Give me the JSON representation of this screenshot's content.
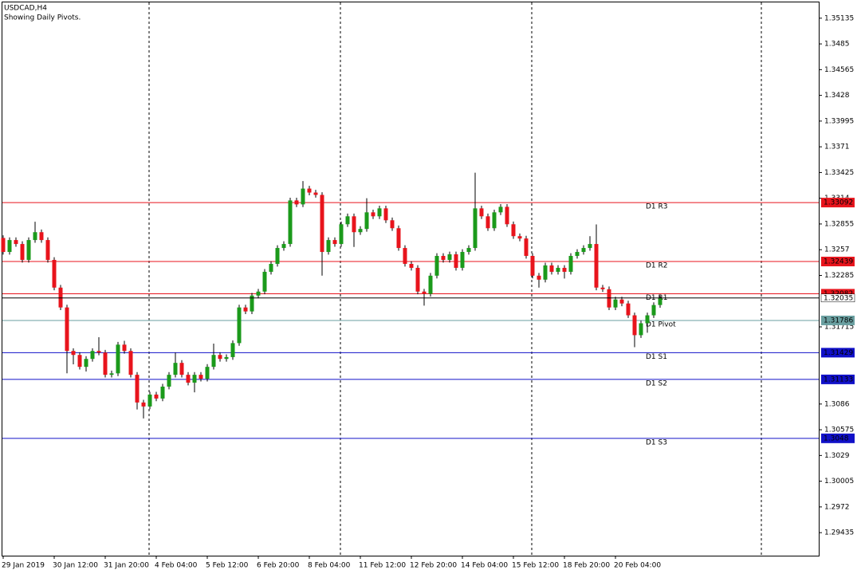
{
  "chart_data": {
    "type": "candlestick",
    "title": "USDCAD,H4",
    "subtitle": "Showing Daily Pivots.",
    "categories": [
      "29 Jan 2019",
      null,
      null,
      null,
      null,
      null,
      null,
      null,
      "30 Jan 12:00",
      null,
      null,
      null,
      null,
      null,
      null,
      null,
      "31 Jan 20:00",
      null,
      null,
      null,
      null,
      null,
      null,
      null,
      "4 Feb 04:00",
      null,
      null,
      null,
      null,
      null,
      null,
      null,
      "5 Feb 12:00",
      null,
      null,
      null,
      null,
      null,
      null,
      null,
      "6 Feb 20:00",
      null,
      null,
      null,
      null,
      null,
      null,
      null,
      "8 Feb 04:00",
      null,
      null,
      null,
      null,
      null,
      null,
      null,
      "11 Feb 12:00",
      null,
      null,
      null,
      null,
      null,
      null,
      null,
      "12 Feb 20:00",
      null,
      null,
      null,
      null,
      null,
      null,
      null,
      "14 Feb 04:00",
      null,
      null,
      null,
      null,
      null,
      null,
      null,
      "15 Feb 12:00",
      null,
      null,
      null,
      null,
      null,
      null,
      null,
      "18 Feb 20:00",
      null,
      null,
      null,
      null,
      null,
      null,
      null,
      "20 Feb 04:00",
      null,
      null,
      null,
      null,
      null,
      null,
      null
    ],
    "open": [
      1.327,
      1.32545,
      1.32677,
      1.32633,
      1.32457,
      1.32677,
      1.32764,
      1.32677,
      1.32457,
      1.3215,
      1.3193,
      1.31448,
      1.31404,
      1.31272,
      1.3136,
      1.31448,
      1.3143,
      1.31184,
      1.312,
      1.31518,
      1.31448,
      1.31184,
      1.30877,
      1.30833,
      1.30965,
      1.30921,
      1.31053,
      1.31184,
      1.31316,
      1.31184,
      1.31097,
      1.31184,
      1.3114,
      1.31272,
      1.31404,
      1.3136,
      1.3138,
      1.31535,
      1.3193,
      1.31886,
      1.32062,
      1.32106,
      1.32325,
      1.32413,
      1.32589,
      1.32633,
      1.33116,
      1.33072,
      1.33247,
      1.33203,
      1.33177,
      1.32545,
      1.32677,
      1.32633,
      1.32852,
      1.3294,
      1.32764,
      1.328,
      1.32984,
      1.3294,
      1.33028,
      1.32896,
      1.32808,
      1.32589,
      1.32413,
      1.32369,
      1.32106,
      1.3208,
      1.32282,
      1.32501,
      1.32457,
      1.32519,
      1.32369,
      1.32545,
      1.32589,
      1.33028,
      1.3294,
      1.32808,
      1.32984,
      1.33045,
      1.32852,
      1.3272,
      1.32694,
      1.32501,
      1.32282,
      1.32238,
      1.32396,
      1.32325,
      1.32369,
      1.32325,
      1.32501,
      1.32545,
      1.32589,
      1.32633,
      1.3215,
      1.32132,
      1.3193,
      1.32018,
      1.31974,
      1.31843,
      1.31623,
      1.31755,
      1.31843,
      1.31957
    ],
    "high": [
      1.3273,
      1.32707,
      1.32707,
      1.32663,
      1.32707,
      1.3288,
      1.32794,
      1.32707,
      1.32487,
      1.3218,
      1.3196,
      1.31478,
      1.31434,
      1.3139,
      1.31478,
      1.316,
      1.3146,
      1.3123,
      1.31548,
      1.3156,
      1.31478,
      1.31214,
      1.30907,
      1.30995,
      1.30995,
      1.31083,
      1.31214,
      1.3143,
      1.31346,
      1.31214,
      1.31214,
      1.31214,
      1.31302,
      1.3153,
      1.31434,
      1.3141,
      1.31565,
      1.3196,
      1.3196,
      1.32092,
      1.32136,
      1.32355,
      1.32443,
      1.32619,
      1.32663,
      1.33146,
      1.33146,
      1.3333,
      1.33277,
      1.33233,
      1.33207,
      1.32707,
      1.32707,
      1.32882,
      1.3297,
      1.3297,
      1.3283,
      1.3314,
      1.33014,
      1.33058,
      1.33058,
      1.32926,
      1.32838,
      1.32619,
      1.32443,
      1.32399,
      1.32136,
      1.32312,
      1.32531,
      1.32531,
      1.32549,
      1.32549,
      1.32575,
      1.32619,
      1.33423,
      1.33058,
      1.3297,
      1.33014,
      1.33075,
      1.33075,
      1.32882,
      1.3275,
      1.32724,
      1.32531,
      1.32312,
      1.32426,
      1.32426,
      1.32399,
      1.32399,
      1.32531,
      1.32575,
      1.32619,
      1.3272,
      1.3285,
      1.3218,
      1.32162,
      1.32048,
      1.32048,
      1.32004,
      1.31873,
      1.31785,
      1.31873,
      1.31987,
      1.32065
    ],
    "low": [
      1.32515,
      1.32515,
      1.32603,
      1.32427,
      1.32427,
      1.32647,
      1.32647,
      1.32427,
      1.3212,
      1.319,
      1.312,
      1.313,
      1.31242,
      1.3122,
      1.3133,
      1.314,
      1.31154,
      1.31154,
      1.3117,
      1.31418,
      1.31154,
      1.308,
      1.307,
      1.30803,
      1.30891,
      1.30891,
      1.31023,
      1.31154,
      1.31154,
      1.31067,
      1.3099,
      1.3111,
      1.3111,
      1.31242,
      1.3133,
      1.3133,
      1.3135,
      1.31505,
      1.31856,
      1.31856,
      1.32032,
      1.32076,
      1.32295,
      1.32383,
      1.32559,
      1.32603,
      1.33042,
      1.33042,
      1.33173,
      1.33147,
      1.32282,
      1.32515,
      1.32603,
      1.32603,
      1.32822,
      1.326,
      1.32734,
      1.3277,
      1.3291,
      1.3291,
      1.32866,
      1.32778,
      1.32559,
      1.32383,
      1.32339,
      1.32076,
      1.3195,
      1.3205,
      1.32252,
      1.32427,
      1.32427,
      1.32339,
      1.32339,
      1.32515,
      1.32559,
      1.3291,
      1.32778,
      1.32778,
      1.32954,
      1.32822,
      1.3269,
      1.32664,
      1.32471,
      1.32252,
      1.3215,
      1.32208,
      1.32295,
      1.32295,
      1.3225,
      1.32295,
      1.32471,
      1.32515,
      1.32559,
      1.3212,
      1.32102,
      1.319,
      1.319,
      1.31944,
      1.31813,
      1.3149,
      1.31593,
      1.3165,
      1.31813,
      1.31927
    ],
    "close": [
      1.32545,
      1.32677,
      1.32633,
      1.32457,
      1.32677,
      1.32764,
      1.32677,
      1.32457,
      1.3215,
      1.3193,
      1.31448,
      1.31404,
      1.31272,
      1.3136,
      1.31448,
      1.3143,
      1.31184,
      1.312,
      1.31518,
      1.31448,
      1.31184,
      1.30877,
      1.30833,
      1.30965,
      1.30921,
      1.31053,
      1.31184,
      1.31316,
      1.31184,
      1.31097,
      1.31184,
      1.3114,
      1.31272,
      1.31404,
      1.3136,
      1.3138,
      1.31535,
      1.3193,
      1.31886,
      1.32062,
      1.32106,
      1.32325,
      1.32413,
      1.32589,
      1.32633,
      1.33116,
      1.33072,
      1.33247,
      1.33203,
      1.33177,
      1.32545,
      1.32677,
      1.32633,
      1.32852,
      1.3294,
      1.32764,
      1.328,
      1.32984,
      1.3294,
      1.33028,
      1.32896,
      1.32808,
      1.32589,
      1.32413,
      1.32369,
      1.32106,
      1.3208,
      1.32282,
      1.32501,
      1.32457,
      1.32519,
      1.32369,
      1.32545,
      1.32589,
      1.33028,
      1.3294,
      1.32808,
      1.32984,
      1.33045,
      1.32852,
      1.3272,
      1.32694,
      1.32501,
      1.32282,
      1.32238,
      1.32396,
      1.32325,
      1.32369,
      1.32325,
      1.32501,
      1.32545,
      1.32589,
      1.32633,
      1.3215,
      1.32132,
      1.3193,
      1.32018,
      1.31974,
      1.31843,
      1.31623,
      1.31755,
      1.31843,
      1.31957,
      1.32035
    ],
    "up_color": "#1b9a1b",
    "down_color": "#e8141c",
    "ylim": [
      1.2918,
      1.3531
    ],
    "yticks": [
      1.35135,
      1.3485,
      1.34565,
      1.3428,
      1.33995,
      1.3371,
      1.33425,
      1.3314,
      1.32855,
      1.3257,
      1.32285,
      1.31715,
      1.3086,
      1.30575,
      1.3029,
      1.30005,
      1.2972,
      1.29435
    ],
    "pivots": [
      {
        "name": "D1 R3",
        "value": 1.33092,
        "color": "#e8141c"
      },
      {
        "name": "D1 R2",
        "value": 1.32439,
        "color": "#e8141c"
      },
      {
        "name": "D1 R1",
        "value": 1.32082,
        "color": "#e8141c"
      },
      {
        "name": "D1 Pivot",
        "value": 1.31786,
        "color": "#6a9fa0"
      },
      {
        "name": "D1 S1",
        "value": 1.31429,
        "color": "#1010c8"
      },
      {
        "name": "D1 S2",
        "value": 1.31133,
        "color": "#1010c8"
      },
      {
        "name": "D1 S3",
        "value": 1.3048,
        "color": "#1010c8"
      }
    ],
    "bid": 1.32035
  }
}
